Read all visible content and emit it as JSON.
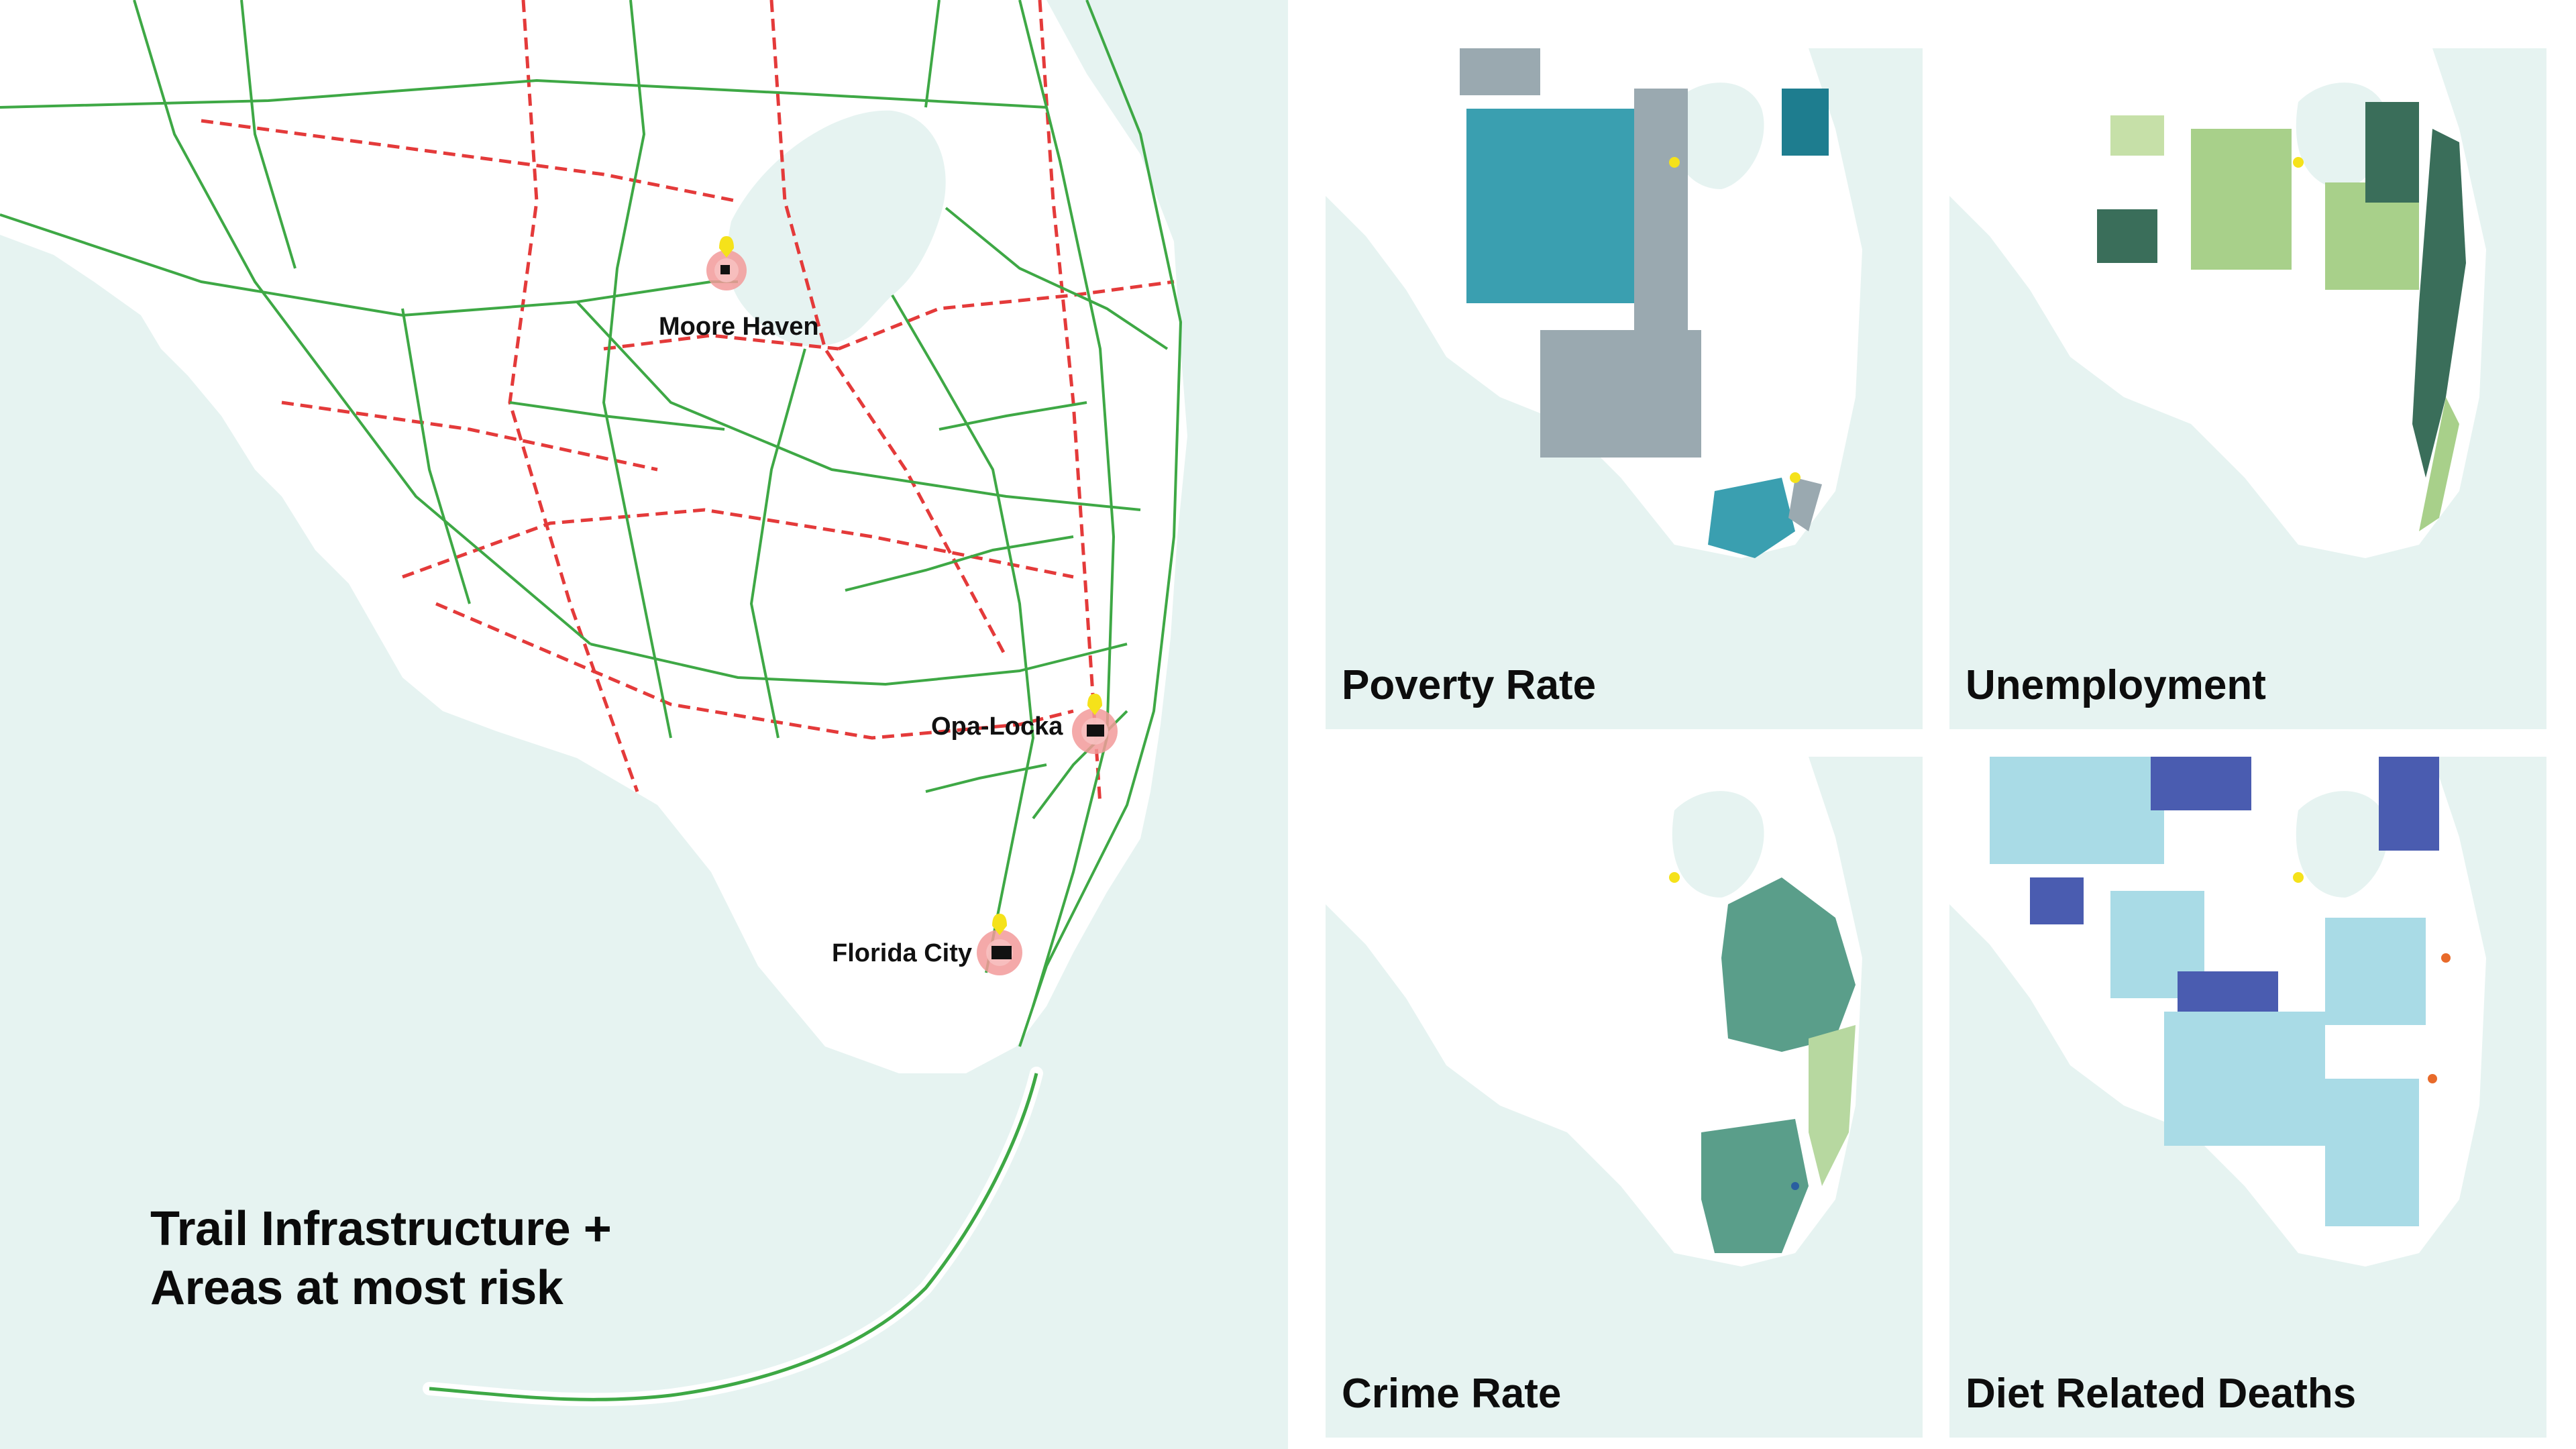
{
  "main_map": {
    "title_line1": "Trail Infrastructure +",
    "title_line2": "Areas at most risk",
    "cities": [
      {
        "name": "Moore Haven"
      },
      {
        "name": "Opa-Locka"
      },
      {
        "name": "Florida City"
      }
    ],
    "legend_colors": {
      "trail": "#3ea845",
      "planned_trail": "#e43a3a",
      "risk_halo": "#f29a9a",
      "marker": "#f5e21a",
      "water": "#e6f3f1",
      "land": "#ffffff"
    }
  },
  "panels": [
    {
      "label": "Poverty Rate",
      "colors": [
        "#3a9fb0",
        "#9aa9b0",
        "#1e7d8f"
      ]
    },
    {
      "label": "Unemployment",
      "colors": [
        "#a8d08a",
        "#3a6e5a",
        "#c6e0a8"
      ]
    },
    {
      "label": "Crime Rate",
      "colors": [
        "#5a9e8a",
        "#b7d8a0",
        "#2a5fa0"
      ]
    },
    {
      "label": "Diet Related Deaths",
      "colors": [
        "#a9dbe6",
        "#4a5cb0",
        "#e86a2a"
      ]
    }
  ]
}
